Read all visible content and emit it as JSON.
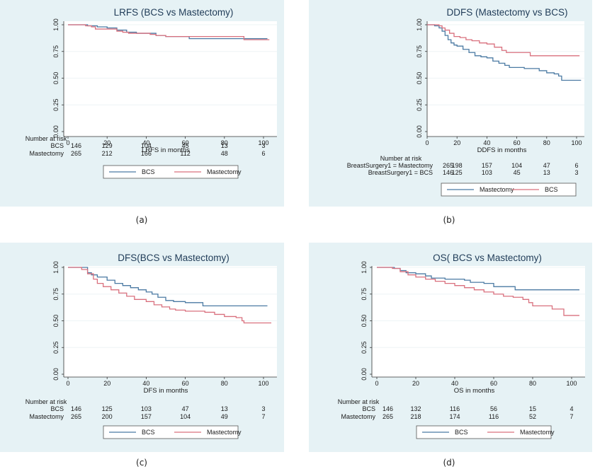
{
  "colors": {
    "bcs": "#4b7aa3",
    "mastectomy": "#d9707e",
    "panel_bg": "#e6f2f5",
    "plot_bg": "#ffffff",
    "title": "#1f3b57"
  },
  "chart_data": [
    {
      "id": "a",
      "type": "line",
      "subtype": "kaplan-meier",
      "caption": "(a)",
      "title": "LRFS (BCS vs Mastectomy)",
      "xlabel": "LRFS in months",
      "ylabel": "",
      "xlim": [
        0,
        104
      ],
      "ylim": [
        0,
        1
      ],
      "xticks": [
        "0",
        "20",
        "40",
        "60",
        "80",
        "100"
      ],
      "yticks": [
        "0.00",
        "0.25",
        "0.50",
        "0.75",
        "1.00"
      ],
      "risk_header": "Number at risk",
      "risk_table": [
        {
          "label": "BCS",
          "values": [
            "146",
            "129",
            "104",
            "45",
            "13",
            "3"
          ]
        },
        {
          "label": "Mastectomy",
          "values": [
            "265",
            "212",
            "166",
            "112",
            "48",
            "6"
          ]
        }
      ],
      "legend": [
        "BCS",
        "Mastectomy"
      ],
      "legend_position": "bottom",
      "series": [
        {
          "name": "BCS",
          "color_key": "bcs",
          "x": [
            0,
            10,
            15,
            20,
            25,
            30,
            35,
            40,
            45,
            50,
            62,
            90,
            102
          ],
          "y": [
            1.0,
            0.99,
            0.98,
            0.97,
            0.95,
            0.93,
            0.92,
            0.92,
            0.9,
            0.89,
            0.87,
            0.87,
            0.87
          ]
        },
        {
          "name": "Mastectomy",
          "color_key": "mastectomy",
          "x": [
            0,
            9,
            12,
            14,
            20,
            25,
            28,
            31,
            35,
            42,
            45,
            50,
            62,
            90,
            103
          ],
          "y": [
            1.0,
            0.99,
            0.98,
            0.96,
            0.96,
            0.94,
            0.93,
            0.92,
            0.92,
            0.91,
            0.9,
            0.89,
            0.89,
            0.86,
            0.86
          ]
        }
      ]
    },
    {
      "id": "b",
      "type": "line",
      "subtype": "kaplan-meier",
      "caption": "(b)",
      "title": "DDFS (Mastectomy vs BCS)",
      "xlabel": "DDFS in months",
      "ylabel": "",
      "xlim": [
        0,
        104
      ],
      "ylim": [
        0,
        1
      ],
      "xticks": [
        "0",
        "20",
        "40",
        "60",
        "80",
        "100"
      ],
      "yticks": [
        "0.00",
        "0.25",
        "0.50",
        "0.75",
        "1.00"
      ],
      "risk_header": "Number at risk",
      "risk_table": [
        {
          "label": "BreastSurgery1 = Mastectomy",
          "values": [
            "265",
            "198",
            "157",
            "104",
            "47",
            "6"
          ]
        },
        {
          "label": "BreastSurgery1 = BCS",
          "values": [
            "146",
            "125",
            "103",
            "45",
            "13",
            "3"
          ]
        }
      ],
      "legend": [
        "Mastectomy",
        "BCS"
      ],
      "legend_position": "bottom",
      "series": [
        {
          "name": "Mastectomy",
          "color_key": "bcs",
          "x": [
            0,
            5,
            8,
            10,
            12,
            14,
            16,
            18,
            20,
            24,
            28,
            32,
            36,
            40,
            44,
            48,
            52,
            55,
            60,
            65,
            70,
            75,
            80,
            85,
            88,
            90,
            103
          ],
          "y": [
            1.0,
            0.99,
            0.97,
            0.94,
            0.9,
            0.86,
            0.83,
            0.81,
            0.8,
            0.77,
            0.74,
            0.71,
            0.7,
            0.69,
            0.66,
            0.64,
            0.62,
            0.6,
            0.6,
            0.59,
            0.59,
            0.57,
            0.55,
            0.54,
            0.52,
            0.48,
            0.48
          ]
        },
        {
          "name": "BCS",
          "color_key": "mastectomy",
          "x": [
            0,
            8,
            10,
            12,
            15,
            18,
            22,
            26,
            30,
            35,
            40,
            45,
            50,
            53,
            60,
            69,
            102
          ],
          "y": [
            1.0,
            0.99,
            0.97,
            0.95,
            0.92,
            0.89,
            0.88,
            0.86,
            0.85,
            0.83,
            0.82,
            0.79,
            0.76,
            0.74,
            0.74,
            0.71,
            0.71
          ]
        }
      ]
    },
    {
      "id": "c",
      "type": "line",
      "subtype": "kaplan-meier",
      "caption": "(c)",
      "title": "DFS(BCS vs Mastectomy)",
      "xlabel": "DFS in months",
      "ylabel": "",
      "xlim": [
        0,
        104
      ],
      "ylim": [
        0,
        1
      ],
      "xticks": [
        "0",
        "20",
        "40",
        "60",
        "80",
        "100"
      ],
      "yticks": [
        "0.00",
        "0.25",
        "0.50",
        "0.75",
        "1.00"
      ],
      "risk_header": "Number at risk",
      "risk_table": [
        {
          "label": "BCS",
          "values": [
            "146",
            "125",
            "103",
            "47",
            "13",
            "3"
          ]
        },
        {
          "label": "Mastectomy",
          "values": [
            "265",
            "200",
            "157",
            "104",
            "49",
            "7"
          ]
        }
      ],
      "legend": [
        "BCS",
        "Mastectomy"
      ],
      "legend_position": "bottom",
      "series": [
        {
          "name": "BCS",
          "color_key": "bcs",
          "x": [
            0,
            10,
            12,
            15,
            20,
            24,
            28,
            32,
            36,
            40,
            43,
            46,
            50,
            54,
            60,
            69,
            102
          ],
          "y": [
            1.0,
            0.95,
            0.93,
            0.91,
            0.88,
            0.85,
            0.83,
            0.81,
            0.79,
            0.77,
            0.75,
            0.72,
            0.69,
            0.68,
            0.67,
            0.64,
            0.64
          ]
        },
        {
          "name": "Mastectomy",
          "color_key": "mastectomy",
          "x": [
            0,
            7,
            10,
            13,
            15,
            18,
            22,
            26,
            30,
            34,
            40,
            44,
            48,
            52,
            55,
            60,
            66,
            70,
            75,
            80,
            86,
            89,
            90,
            104
          ],
          "y": [
            1.0,
            0.98,
            0.94,
            0.89,
            0.85,
            0.82,
            0.79,
            0.76,
            0.73,
            0.7,
            0.68,
            0.65,
            0.63,
            0.61,
            0.6,
            0.59,
            0.59,
            0.58,
            0.56,
            0.54,
            0.53,
            0.5,
            0.48,
            0.48
          ]
        }
      ]
    },
    {
      "id": "d",
      "type": "line",
      "subtype": "kaplan-meier",
      "caption": "(d)",
      "title": "OS( BCS vs Mastectomy)",
      "xlabel": "OS in months",
      "ylabel": "",
      "xlim": [
        0,
        106
      ],
      "ylim": [
        0,
        1
      ],
      "xticks": [
        "0",
        "20",
        "40",
        "60",
        "80",
        "100"
      ],
      "yticks": [
        "0.00",
        "0.25",
        "0.50",
        "0.75",
        "1.00"
      ],
      "risk_header": "Number at risk",
      "risk_table": [
        {
          "label": "BCS",
          "values": [
            "146",
            "132",
            "116",
            "56",
            "15",
            "4"
          ]
        },
        {
          "label": "Mastectomy",
          "values": [
            "265",
            "218",
            "174",
            "116",
            "52",
            "7"
          ]
        }
      ],
      "legend": [
        "BCS",
        "Mastectomy"
      ],
      "legend_position": "bottom",
      "series": [
        {
          "name": "BCS",
          "color_key": "bcs",
          "x": [
            0,
            9,
            12,
            15,
            20,
            25,
            28,
            35,
            45,
            48,
            55,
            60,
            71,
            104
          ],
          "y": [
            1.0,
            0.99,
            0.97,
            0.95,
            0.94,
            0.92,
            0.9,
            0.89,
            0.88,
            0.86,
            0.85,
            0.82,
            0.79,
            0.79
          ]
        },
        {
          "name": "Mastectomy",
          "color_key": "mastectomy",
          "x": [
            0,
            8,
            12,
            16,
            20,
            25,
            30,
            35,
            40,
            45,
            50,
            55,
            60,
            65,
            70,
            75,
            78,
            80,
            90,
            96,
            104
          ],
          "y": [
            1.0,
            0.99,
            0.96,
            0.93,
            0.91,
            0.89,
            0.87,
            0.85,
            0.83,
            0.81,
            0.79,
            0.77,
            0.75,
            0.73,
            0.72,
            0.7,
            0.67,
            0.64,
            0.61,
            0.55,
            0.55
          ]
        }
      ]
    }
  ]
}
